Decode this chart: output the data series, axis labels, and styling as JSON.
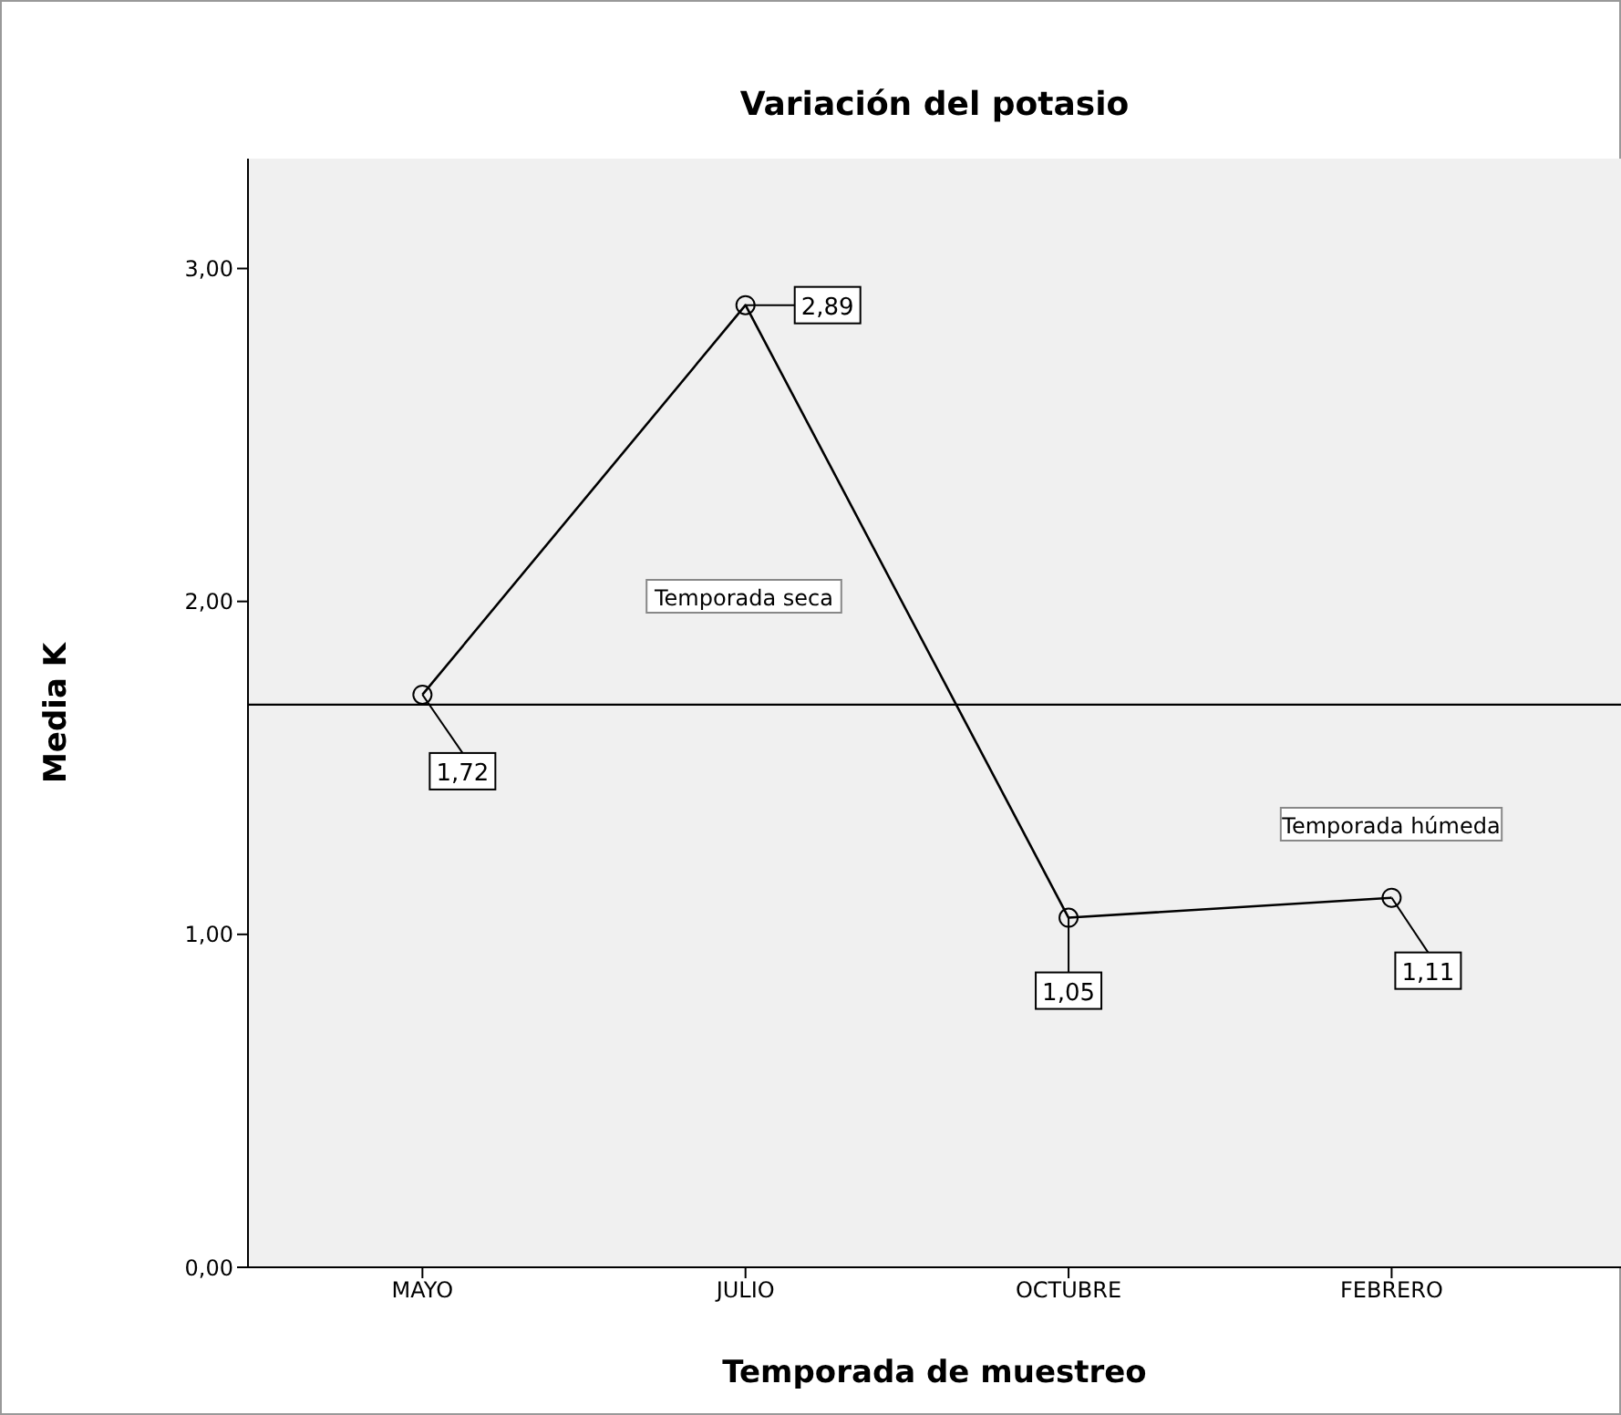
{
  "chart_data": {
    "type": "line",
    "title": "Variación del potasio",
    "xlabel": "Temporada de muestreo",
    "ylabel": "Media K",
    "categories": [
      "MAYO",
      "JULIO",
      "OCTUBRE",
      "FEBRERO"
    ],
    "series": [
      {
        "color": "#000000",
        "values": [
          1.72,
          2.89,
          1.05,
          1.11
        ]
      }
    ],
    "value_labels": [
      "1,72",
      "2,89",
      "1,05",
      "1,11"
    ],
    "ylim": [
      0,
      3.33
    ],
    "yticks": [
      {
        "value": 0,
        "label": "0,00"
      },
      {
        "value": 1,
        "label": "1,00"
      },
      {
        "value": 2,
        "label": "2,00"
      },
      {
        "value": 3,
        "label": "3,00"
      }
    ],
    "ref_lines": [
      {
        "axis": "y",
        "value": 1.69,
        "color": "#000000"
      }
    ],
    "annotations": [
      "Temporada seca",
      "Temporada húmeda"
    ],
    "marker": "circle",
    "line_style": "solid",
    "grid": false,
    "legend": false
  }
}
